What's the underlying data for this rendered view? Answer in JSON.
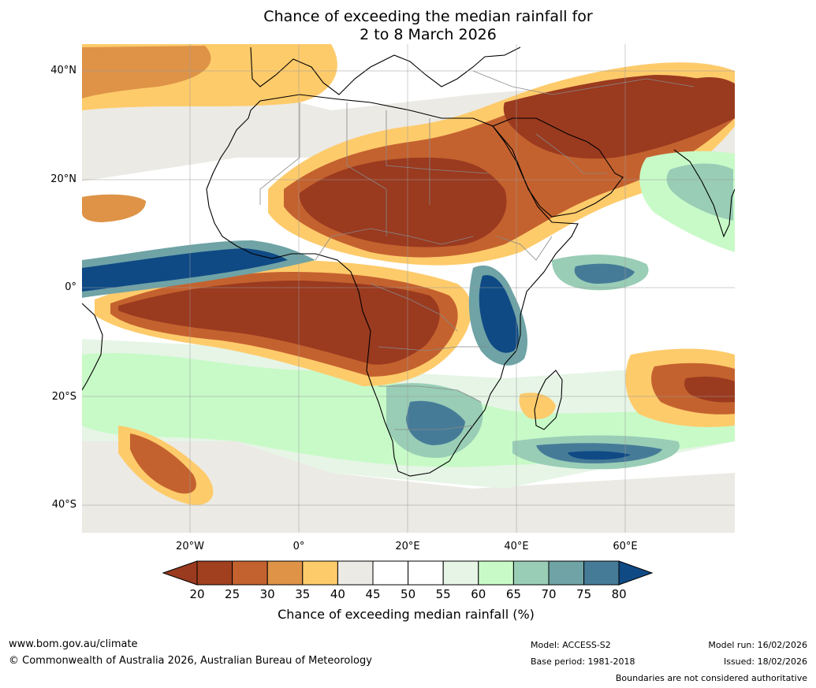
{
  "title": {
    "line1": "Chance of exceeding the median rainfall for",
    "line2": "2 to 8 March 2026"
  },
  "map": {
    "lat_labels": [
      "40°N",
      "20°N",
      "0°",
      "20°S",
      "40°S"
    ],
    "lon_labels": [
      "20°W",
      "0°",
      "20°E",
      "40°E",
      "60°E"
    ]
  },
  "colorbar": {
    "ticks": [
      "20",
      "25",
      "30",
      "35",
      "40",
      "45",
      "50",
      "55",
      "60",
      "65",
      "70",
      "75",
      "80"
    ],
    "colors": [
      "#9a3a1f",
      "#a0401f",
      "#c4622f",
      "#de9347",
      "#fecb6b",
      "#eceae4",
      "#ffffff",
      "#ffffff",
      "#e6f5e6",
      "#c8fac8",
      "#99cdb6",
      "#6fa3a6",
      "#467b98",
      "#0f4a85"
    ],
    "label": "Chance of exceeding median rainfall (%)"
  },
  "footer": {
    "website": "www.bom.gov.au/climate",
    "copyright": "© Commonwealth of Australia 2026, Australian Bureau of Meteorology",
    "model": "Model: ACCESS-S2",
    "base_period": "Base period: 1981-2018",
    "model_run": "Model run: 16/02/2026",
    "issued": "Issued: 18/02/2026",
    "disclaimer": "Boundaries are not considered authoritative"
  }
}
